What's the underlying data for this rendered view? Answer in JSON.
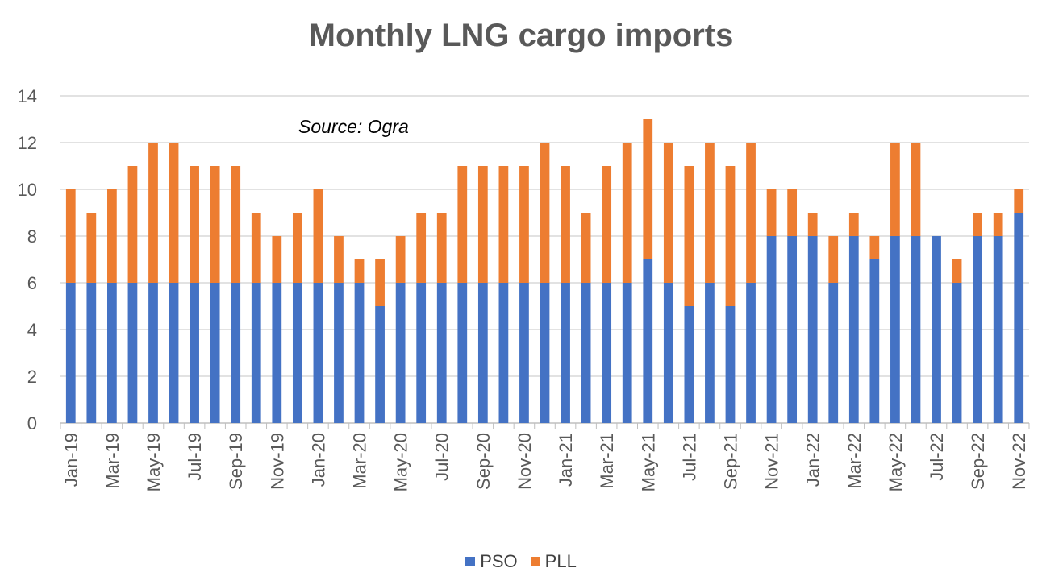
{
  "chart_data": {
    "type": "bar",
    "stacked": true,
    "title": "Monthly LNG cargo imports",
    "annotation": "Source: Ogra",
    "ylim": [
      0,
      14
    ],
    "yticks": [
      0,
      2,
      4,
      6,
      8,
      10,
      12,
      14
    ],
    "grid": true,
    "legend_position": "bottom",
    "categories": [
      "Jan-19",
      "Feb-19",
      "Mar-19",
      "Apr-19",
      "May-19",
      "Jun-19",
      "Jul-19",
      "Aug-19",
      "Sep-19",
      "Oct-19",
      "Nov-19",
      "Dec-19",
      "Jan-20",
      "Feb-20",
      "Mar-20",
      "Apr-20",
      "May-20",
      "Jun-20",
      "Jul-20",
      "Aug-20",
      "Sep-20",
      "Oct-20",
      "Nov-20",
      "Dec-20",
      "Jan-21",
      "Feb-21",
      "Mar-21",
      "Apr-21",
      "May-21",
      "Jun-21",
      "Jul-21",
      "Aug-21",
      "Sep-21",
      "Oct-21",
      "Nov-21",
      "Dec-21",
      "Jan-22",
      "Feb-22",
      "Mar-22",
      "Apr-22",
      "May-22",
      "Jun-22",
      "Jul-22",
      "Aug-22",
      "Sep-22",
      "Oct-22",
      "Nov-22"
    ],
    "tick_labels": [
      "Jan-19",
      "Mar-19",
      "May-19",
      "Jul-19",
      "Sep-19",
      "Nov-19",
      "Jan-20",
      "Mar-20",
      "May-20",
      "Jul-20",
      "Sep-20",
      "Nov-20",
      "Jan-21",
      "Mar-21",
      "May-21",
      "Jul-21",
      "Sep-21",
      "Nov-21",
      "Jan-22",
      "Mar-22",
      "May-22",
      "Jul-22",
      "Sep-22",
      "Nov-22"
    ],
    "series": [
      {
        "name": "PSO",
        "color": "#4472C4",
        "values": [
          6,
          6,
          6,
          6,
          6,
          6,
          6,
          6,
          6,
          6,
          6,
          6,
          6,
          6,
          6,
          5,
          6,
          6,
          6,
          6,
          6,
          6,
          6,
          6,
          6,
          6,
          6,
          6,
          7,
          6,
          5,
          6,
          5,
          6,
          8,
          8,
          8,
          6,
          8,
          7,
          8,
          8,
          8,
          6,
          8,
          8,
          9
        ]
      },
      {
        "name": "PLL",
        "color": "#ED7D31",
        "values": [
          4,
          3,
          4,
          5,
          6,
          6,
          5,
          5,
          5,
          3,
          2,
          3,
          4,
          2,
          1,
          2,
          2,
          3,
          3,
          5,
          5,
          5,
          5,
          6,
          5,
          3,
          5,
          6,
          6,
          6,
          6,
          6,
          6,
          6,
          2,
          2,
          1,
          2,
          1,
          1,
          4,
          4,
          0,
          1,
          1,
          1,
          1
        ]
      }
    ]
  },
  "legend": {
    "pso_label": "PSO",
    "pll_label": "PLL",
    "pso_color": "#4472C4",
    "pll_color": "#ED7D31"
  }
}
